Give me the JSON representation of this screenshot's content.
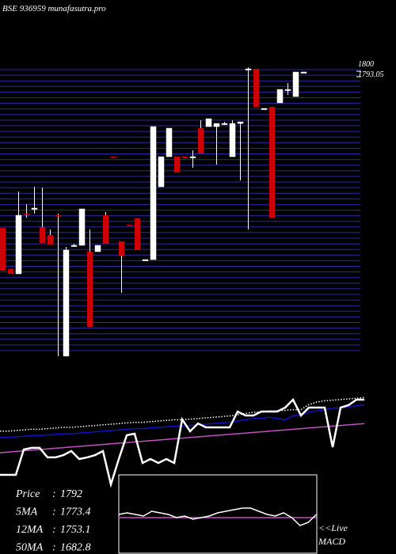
{
  "chart_data": [
    {
      "type": "candlestick",
      "title": "BSE 936959 munafasutra.pro",
      "up_color": "#ffffff",
      "down_color": "#cc0000",
      "grid": true,
      "grid_color": "#2a2aa8",
      "ylim": [
        1440,
        1805
      ],
      "yticks": [
        1800,
        1793.05
      ],
      "open": [
        1602,
        1550,
        1544,
        1620,
        1627,
        1603,
        1593,
        1618,
        1440,
        1580,
        1580,
        1572,
        1572,
        1618,
        1692,
        1585,
        1606,
        1614,
        1562,
        1562,
        1654,
        1692,
        1692,
        1692,
        1692,
        1728,
        1730,
        1730,
        1734,
        1692,
        1734,
        1803,
        1803,
        1753,
        1755,
        1760,
        1777,
        1768,
        1799
      ],
      "high": [
        1602,
        1550,
        1648,
        1632,
        1654,
        1653,
        1600,
        1620,
        1578,
        1582,
        1626,
        1600,
        1580,
        1622,
        1692,
        1585,
        1606,
        1614,
        1562,
        1730,
        1692,
        1728,
        1692,
        1692,
        1700,
        1738,
        1740,
        1734,
        1736,
        1738,
        1736,
        1805,
        1803,
        1753,
        1755,
        1777,
        1785,
        1799,
        1799
      ],
      "low": [
        1548,
        1544,
        1544,
        1615,
        1620,
        1583,
        1581,
        1440,
        1440,
        1578,
        1580,
        1477,
        1572,
        1582,
        1692,
        1520,
        1605,
        1574,
        1562,
        1562,
        1654,
        1692,
        1672,
        1690,
        1678,
        1696,
        1730,
        1682,
        1732,
        1692,
        1662,
        1600,
        1755,
        1753,
        1615,
        1760,
        1770,
        1768,
        1799
      ],
      "close": [
        1548,
        1544,
        1618,
        1619,
        1627,
        1583,
        1581,
        1617,
        1574,
        1580,
        1626,
        1477,
        1580,
        1582,
        1691,
        1567,
        1605,
        1574,
        1562,
        1730,
        1692,
        1728,
        1672,
        1690,
        1692,
        1696,
        1740,
        1734,
        1734,
        1734,
        1736,
        1803,
        1755,
        1753,
        1615,
        1777,
        1777,
        1799,
        1799
      ]
    },
    {
      "type": "line",
      "ylim": [
        0,
        100
      ],
      "series": [
        {
          "color": "#ffffff",
          "dashed": true,
          "values": [
            47,
            47,
            47.5,
            48,
            48.5,
            48.5,
            49,
            49.5,
            50,
            50,
            50.5,
            51,
            51.5,
            52,
            52.5,
            53,
            53.5,
            54,
            54,
            54.5,
            55,
            55.5,
            56,
            56,
            56.5,
            57,
            57.5,
            58,
            58.5,
            59,
            60,
            61,
            62,
            62,
            63,
            63,
            63.5,
            64,
            64,
            68,
            70,
            71,
            71.5,
            72,
            72.5,
            73,
            73.5
          ]
        },
        {
          "color": "#1010c8",
          "values": [
            42,
            42,
            42.5,
            43,
            43.5,
            43.5,
            44,
            44.5,
            45,
            45,
            45.5,
            46,
            46.5,
            47,
            47.5,
            48,
            48.5,
            49,
            49,
            49.5,
            50,
            50.5,
            51,
            51,
            51.5,
            52,
            52.5,
            53,
            53.5,
            54,
            55,
            56,
            57,
            57,
            58,
            57,
            56,
            59,
            60,
            62,
            63,
            64,
            65,
            65.5,
            66,
            67,
            68
          ]
        },
        {
          "color": "#c050c0",
          "values": [
            30,
            30.5,
            31,
            31.5,
            32,
            32.5,
            33,
            33.5,
            34,
            34.5,
            35,
            35.5,
            36,
            36.5,
            37,
            37.5,
            38,
            38.5,
            39,
            39.5,
            40,
            40.5,
            41,
            41.5,
            42,
            42.5,
            43,
            43.5,
            44,
            44.5,
            45,
            45.5,
            46,
            46.5,
            47,
            47.5,
            48,
            48.5,
            49,
            49.5,
            50,
            50.5,
            51,
            51.5,
            52,
            52.5,
            53
          ]
        },
        {
          "color": "#ffffff",
          "width": 2.5,
          "values": [
            12.5,
            12.5,
            12.5,
            32.5,
            33.8,
            33.8,
            26.3,
            26.3,
            28.1,
            31.3,
            25,
            26.3,
            28.1,
            31.3,
            5,
            25,
            43.8,
            45,
            21.9,
            25,
            21.9,
            25,
            21.9,
            56.3,
            46.9,
            53.1,
            50,
            50,
            50,
            50,
            62.5,
            59.4,
            59.4,
            62.5,
            62.5,
            62.5,
            65.6,
            71.9,
            59.4,
            65.6,
            65.6,
            65.6,
            34.4,
            65.6,
            67.5,
            71.9,
            71.9
          ]
        }
      ],
      "stats": [
        {
          "label": "Price",
          "value": 1792
        },
        {
          "label": "5MA",
          "value": 1773.4
        },
        {
          "label": "12MA",
          "value": 1753.1
        },
        {
          "label": "50MA",
          "value": 1682.8
        }
      ]
    },
    {
      "type": "line",
      "label": "<<Live",
      "title": "MACD",
      "ylim": [
        -50,
        50
      ],
      "series": [
        {
          "color": "#c050c0",
          "values": [
            -4,
            -4,
            -4,
            -4,
            -4,
            -4,
            -4,
            -4,
            -4,
            -4,
            -4,
            -4,
            -4,
            -4,
            -4,
            -4,
            -4,
            -4,
            -4,
            -4,
            -4,
            -4,
            -4,
            -4,
            -4
          ]
        },
        {
          "color": "#ffffff",
          "values": [
            0,
            2,
            0,
            -2,
            4,
            2,
            0,
            -4,
            -2,
            -6,
            -4,
            -2,
            2,
            4,
            6,
            8,
            8,
            4,
            0,
            -2,
            2,
            -4,
            -14,
            -10,
            0
          ]
        }
      ]
    }
  ]
}
